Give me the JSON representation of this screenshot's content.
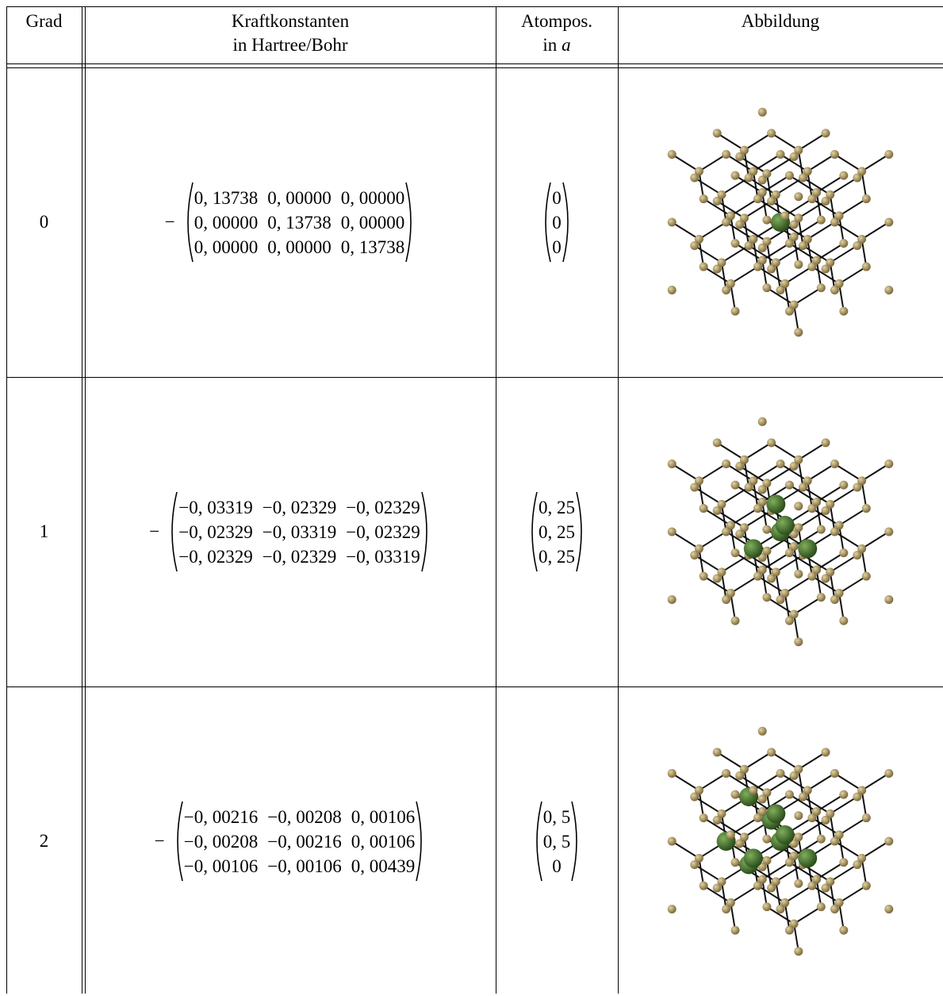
{
  "header": {
    "grad": "Grad",
    "force_line1": "Kraftkonstanten",
    "force_line2": "in Hartree/Bohr",
    "pos_line1": "Atompos.",
    "pos_line2_text": "in",
    "pos_line2_var": "a",
    "image": "Abbildung"
  },
  "rows": [
    {
      "grad": "0",
      "sign": "−",
      "matrix": [
        [
          "0, 13738",
          "0, 00000",
          "0, 00000"
        ],
        [
          "0, 00000",
          "0, 13738",
          "0, 00000"
        ],
        [
          "0, 00000",
          "0, 00000",
          "0, 13738"
        ]
      ],
      "position": [
        "0",
        "0",
        "0"
      ]
    },
    {
      "grad": "1",
      "sign": "−",
      "matrix": [
        [
          "−0, 03319",
          "−0, 02329",
          "−0, 02329"
        ],
        [
          "−0, 02329",
          "−0, 03319",
          "−0, 02329"
        ],
        [
          "−0, 02329",
          "−0, 02329",
          "−0, 03319"
        ]
      ],
      "position": [
        "0, 25",
        "0, 25",
        "0, 25"
      ]
    },
    {
      "grad": "2",
      "sign": "−",
      "matrix": [
        [
          "−0, 00216",
          "−0, 00208",
          "0, 00106"
        ],
        [
          "−0, 00208",
          "−0, 00216",
          "0, 00106"
        ],
        [
          "−0, 00106",
          "−0, 00106",
          "0, 00439"
        ]
      ],
      "position": [
        "0, 5",
        "0, 5",
        "0"
      ]
    }
  ]
}
